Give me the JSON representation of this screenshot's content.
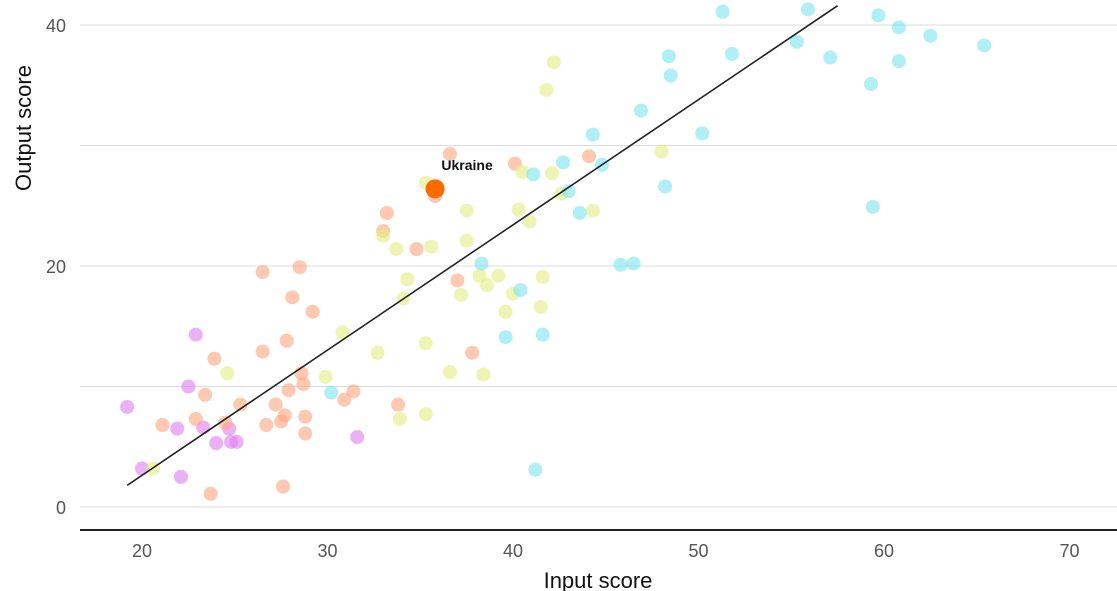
{
  "chart_data": {
    "type": "scatter",
    "title": "",
    "xlabel": "Input score",
    "ylabel": "Output score",
    "xlim": [
      16.7,
      72.5
    ],
    "ylim": [
      -2,
      42
    ],
    "xticks": [
      20,
      30,
      40,
      50,
      60,
      70
    ],
    "yticks": [
      0,
      20,
      40
    ],
    "ygrid_minor": [
      10,
      30
    ],
    "grid": true,
    "legend": "none",
    "colors": {
      "purple": "#e17ff1",
      "orange": "#ffa77f",
      "yellow": "#e3ee82",
      "cyan": "#7ee5f1",
      "highlight": "#ff6a00",
      "trendline": "#222222"
    },
    "trendline": {
      "x": [
        19.2,
        57.5
      ],
      "y": [
        1.8,
        41.6
      ]
    },
    "highlight": {
      "label": "Ukraine",
      "x": 35.8,
      "y": 26.4
    },
    "points": [
      {
        "x": 19.2,
        "y": 8.3,
        "g": "purple"
      },
      {
        "x": 20.0,
        "y": 3.2,
        "g": "purple"
      },
      {
        "x": 21.9,
        "y": 6.5,
        "g": "purple"
      },
      {
        "x": 22.1,
        "y": 2.5,
        "g": "purple"
      },
      {
        "x": 22.5,
        "y": 10.0,
        "g": "purple"
      },
      {
        "x": 22.9,
        "y": 14.3,
        "g": "purple"
      },
      {
        "x": 23.3,
        "y": 6.6,
        "g": "purple"
      },
      {
        "x": 24.0,
        "y": 5.3,
        "g": "purple"
      },
      {
        "x": 24.8,
        "y": 5.4,
        "g": "purple"
      },
      {
        "x": 24.7,
        "y": 6.5,
        "g": "purple"
      },
      {
        "x": 25.1,
        "y": 5.4,
        "g": "purple"
      },
      {
        "x": 31.6,
        "y": 5.8,
        "g": "purple"
      },
      {
        "x": 21.1,
        "y": 6.8,
        "g": "orange"
      },
      {
        "x": 22.9,
        "y": 7.3,
        "g": "orange"
      },
      {
        "x": 23.4,
        "y": 9.3,
        "g": "orange"
      },
      {
        "x": 23.7,
        "y": 1.1,
        "g": "orange"
      },
      {
        "x": 23.9,
        "y": 12.3,
        "g": "orange"
      },
      {
        "x": 24.5,
        "y": 7.0,
        "g": "orange"
      },
      {
        "x": 25.3,
        "y": 8.5,
        "g": "orange"
      },
      {
        "x": 26.5,
        "y": 19.5,
        "g": "orange"
      },
      {
        "x": 26.5,
        "y": 12.9,
        "g": "orange"
      },
      {
        "x": 26.7,
        "y": 6.8,
        "g": "orange"
      },
      {
        "x": 27.2,
        "y": 8.5,
        "g": "orange"
      },
      {
        "x": 27.5,
        "y": 7.1,
        "g": "orange"
      },
      {
        "x": 27.6,
        "y": 1.7,
        "g": "orange"
      },
      {
        "x": 27.7,
        "y": 7.6,
        "g": "orange"
      },
      {
        "x": 27.8,
        "y": 13.8,
        "g": "orange"
      },
      {
        "x": 27.9,
        "y": 9.7,
        "g": "orange"
      },
      {
        "x": 28.1,
        "y": 17.4,
        "g": "orange"
      },
      {
        "x": 28.5,
        "y": 19.9,
        "g": "orange"
      },
      {
        "x": 28.6,
        "y": 11.1,
        "g": "orange"
      },
      {
        "x": 28.7,
        "y": 10.2,
        "g": "orange"
      },
      {
        "x": 28.8,
        "y": 7.5,
        "g": "orange"
      },
      {
        "x": 28.8,
        "y": 6.1,
        "g": "orange"
      },
      {
        "x": 29.2,
        "y": 16.2,
        "g": "orange"
      },
      {
        "x": 30.9,
        "y": 8.9,
        "g": "orange"
      },
      {
        "x": 31.4,
        "y": 9.6,
        "g": "orange"
      },
      {
        "x": 33.0,
        "y": 22.9,
        "g": "orange"
      },
      {
        "x": 33.2,
        "y": 24.4,
        "g": "orange"
      },
      {
        "x": 33.8,
        "y": 8.5,
        "g": "orange"
      },
      {
        "x": 34.8,
        "y": 21.4,
        "g": "orange"
      },
      {
        "x": 35.8,
        "y": 25.8,
        "g": "orange"
      },
      {
        "x": 36.6,
        "y": 29.3,
        "g": "orange"
      },
      {
        "x": 37.0,
        "y": 18.8,
        "g": "orange"
      },
      {
        "x": 37.8,
        "y": 12.8,
        "g": "orange"
      },
      {
        "x": 40.1,
        "y": 28.5,
        "g": "orange"
      },
      {
        "x": 44.1,
        "y": 29.1,
        "g": "orange"
      },
      {
        "x": 20.6,
        "y": 3.2,
        "g": "yellow"
      },
      {
        "x": 24.6,
        "y": 11.1,
        "g": "yellow"
      },
      {
        "x": 29.9,
        "y": 10.8,
        "g": "yellow"
      },
      {
        "x": 30.8,
        "y": 14.5,
        "g": "yellow"
      },
      {
        "x": 32.7,
        "y": 12.8,
        "g": "yellow"
      },
      {
        "x": 33.0,
        "y": 22.5,
        "g": "yellow"
      },
      {
        "x": 33.7,
        "y": 21.4,
        "g": "yellow"
      },
      {
        "x": 33.9,
        "y": 7.3,
        "g": "yellow"
      },
      {
        "x": 34.1,
        "y": 17.3,
        "g": "yellow"
      },
      {
        "x": 34.3,
        "y": 18.9,
        "g": "yellow"
      },
      {
        "x": 35.3,
        "y": 13.6,
        "g": "yellow"
      },
      {
        "x": 35.3,
        "y": 7.7,
        "g": "yellow"
      },
      {
        "x": 35.6,
        "y": 21.6,
        "g": "yellow"
      },
      {
        "x": 35.3,
        "y": 26.9,
        "g": "yellow"
      },
      {
        "x": 36.6,
        "y": 11.2,
        "g": "yellow"
      },
      {
        "x": 37.2,
        "y": 17.6,
        "g": "yellow"
      },
      {
        "x": 37.5,
        "y": 24.6,
        "g": "yellow"
      },
      {
        "x": 37.5,
        "y": 22.1,
        "g": "yellow"
      },
      {
        "x": 38.2,
        "y": 19.2,
        "g": "yellow"
      },
      {
        "x": 38.4,
        "y": 11.0,
        "g": "yellow"
      },
      {
        "x": 38.6,
        "y": 18.4,
        "g": "yellow"
      },
      {
        "x": 39.2,
        "y": 19.2,
        "g": "yellow"
      },
      {
        "x": 39.6,
        "y": 16.2,
        "g": "yellow"
      },
      {
        "x": 40.0,
        "y": 17.7,
        "g": "yellow"
      },
      {
        "x": 40.3,
        "y": 24.7,
        "g": "yellow"
      },
      {
        "x": 40.5,
        "y": 27.8,
        "g": "yellow"
      },
      {
        "x": 40.9,
        "y": 23.7,
        "g": "yellow"
      },
      {
        "x": 41.5,
        "y": 16.6,
        "g": "yellow"
      },
      {
        "x": 41.6,
        "y": 19.1,
        "g": "yellow"
      },
      {
        "x": 41.8,
        "y": 34.6,
        "g": "yellow"
      },
      {
        "x": 42.2,
        "y": 36.9,
        "g": "yellow"
      },
      {
        "x": 42.1,
        "y": 27.7,
        "g": "yellow"
      },
      {
        "x": 42.6,
        "y": 26.0,
        "g": "yellow"
      },
      {
        "x": 44.3,
        "y": 24.6,
        "g": "yellow"
      },
      {
        "x": 48.0,
        "y": 29.5,
        "g": "yellow"
      },
      {
        "x": 30.2,
        "y": 9.5,
        "g": "cyan"
      },
      {
        "x": 38.3,
        "y": 20.2,
        "g": "cyan"
      },
      {
        "x": 39.6,
        "y": 14.1,
        "g": "cyan"
      },
      {
        "x": 40.4,
        "y": 18.0,
        "g": "cyan"
      },
      {
        "x": 41.1,
        "y": 27.6,
        "g": "cyan"
      },
      {
        "x": 41.2,
        "y": 3.1,
        "g": "cyan"
      },
      {
        "x": 41.6,
        "y": 14.3,
        "g": "cyan"
      },
      {
        "x": 42.7,
        "y": 28.6,
        "g": "cyan"
      },
      {
        "x": 43.0,
        "y": 26.2,
        "g": "cyan"
      },
      {
        "x": 43.6,
        "y": 24.4,
        "g": "cyan"
      },
      {
        "x": 44.3,
        "y": 30.9,
        "g": "cyan"
      },
      {
        "x": 44.8,
        "y": 28.4,
        "g": "cyan"
      },
      {
        "x": 45.8,
        "y": 20.1,
        "g": "cyan"
      },
      {
        "x": 46.5,
        "y": 20.2,
        "g": "cyan"
      },
      {
        "x": 46.9,
        "y": 32.9,
        "g": "cyan"
      },
      {
        "x": 48.2,
        "y": 26.6,
        "g": "cyan"
      },
      {
        "x": 48.4,
        "y": 37.4,
        "g": "cyan"
      },
      {
        "x": 48.5,
        "y": 35.8,
        "g": "cyan"
      },
      {
        "x": 50.2,
        "y": 31.0,
        "g": "cyan"
      },
      {
        "x": 51.3,
        "y": 41.1,
        "g": "cyan"
      },
      {
        "x": 51.8,
        "y": 37.6,
        "g": "cyan"
      },
      {
        "x": 55.3,
        "y": 38.6,
        "g": "cyan"
      },
      {
        "x": 55.9,
        "y": 41.3,
        "g": "cyan"
      },
      {
        "x": 57.1,
        "y": 37.3,
        "g": "cyan"
      },
      {
        "x": 59.3,
        "y": 35.1,
        "g": "cyan"
      },
      {
        "x": 59.4,
        "y": 24.9,
        "g": "cyan"
      },
      {
        "x": 59.7,
        "y": 40.8,
        "g": "cyan"
      },
      {
        "x": 60.8,
        "y": 39.8,
        "g": "cyan"
      },
      {
        "x": 60.8,
        "y": 37.0,
        "g": "cyan"
      },
      {
        "x": 62.5,
        "y": 39.1,
        "g": "cyan"
      },
      {
        "x": 65.4,
        "y": 38.3,
        "g": "cyan"
      }
    ]
  }
}
